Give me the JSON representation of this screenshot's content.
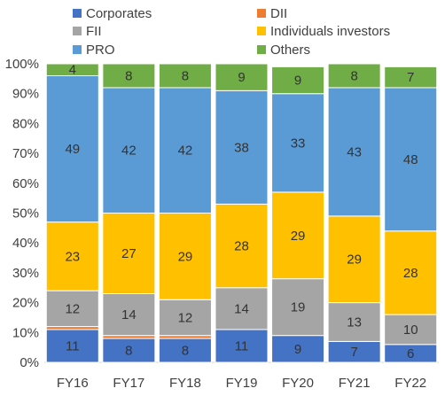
{
  "chart_data": {
    "type": "bar",
    "stacked": true,
    "percent": true,
    "title": "",
    "xlabel": "",
    "ylabel": "",
    "ylim": [
      0,
      100
    ],
    "yticks": [
      "0%",
      "10%",
      "20%",
      "30%",
      "40%",
      "50%",
      "60%",
      "70%",
      "80%",
      "90%",
      "100%"
    ],
    "grid": false,
    "legend_position": "top",
    "categories": [
      "FY16",
      "FY17",
      "FY18",
      "FY19",
      "FY20",
      "FY21",
      "FY22"
    ],
    "series": [
      {
        "name": "Corporates",
        "color": "#4472C4",
        "values": [
          11,
          8,
          8,
          11,
          9,
          7,
          6
        ],
        "labels": [
          "11",
          "8",
          "8",
          "11",
          "9",
          "7",
          "6"
        ]
      },
      {
        "name": "DII",
        "color": "#ED7D31",
        "values": [
          1,
          1,
          1,
          0,
          0,
          0,
          0
        ],
        "labels": [
          "",
          "",
          "",
          "",
          "",
          "",
          ""
        ]
      },
      {
        "name": "FII",
        "color": "#A5A5A5",
        "values": [
          12,
          14,
          12,
          14,
          19,
          13,
          10
        ],
        "labels": [
          "12",
          "14",
          "12",
          "14",
          "19",
          "13",
          "10"
        ]
      },
      {
        "name": "Individuals investors",
        "color": "#FFC000",
        "values": [
          23,
          27,
          29,
          28,
          29,
          29,
          28
        ],
        "labels": [
          "23",
          "27",
          "29",
          "28",
          "29",
          "29",
          "28"
        ]
      },
      {
        "name": "PRO",
        "color": "#5B9BD5",
        "values": [
          49,
          42,
          42,
          38,
          33,
          43,
          48
        ],
        "labels": [
          "49",
          "42",
          "42",
          "38",
          "33",
          "43",
          "48"
        ]
      },
      {
        "name": "Others",
        "color": "#70AD47",
        "values": [
          4,
          8,
          8,
          9,
          9,
          8,
          7
        ],
        "labels": [
          "4",
          "8",
          "8",
          "9",
          "9",
          "8",
          "7"
        ]
      }
    ]
  }
}
